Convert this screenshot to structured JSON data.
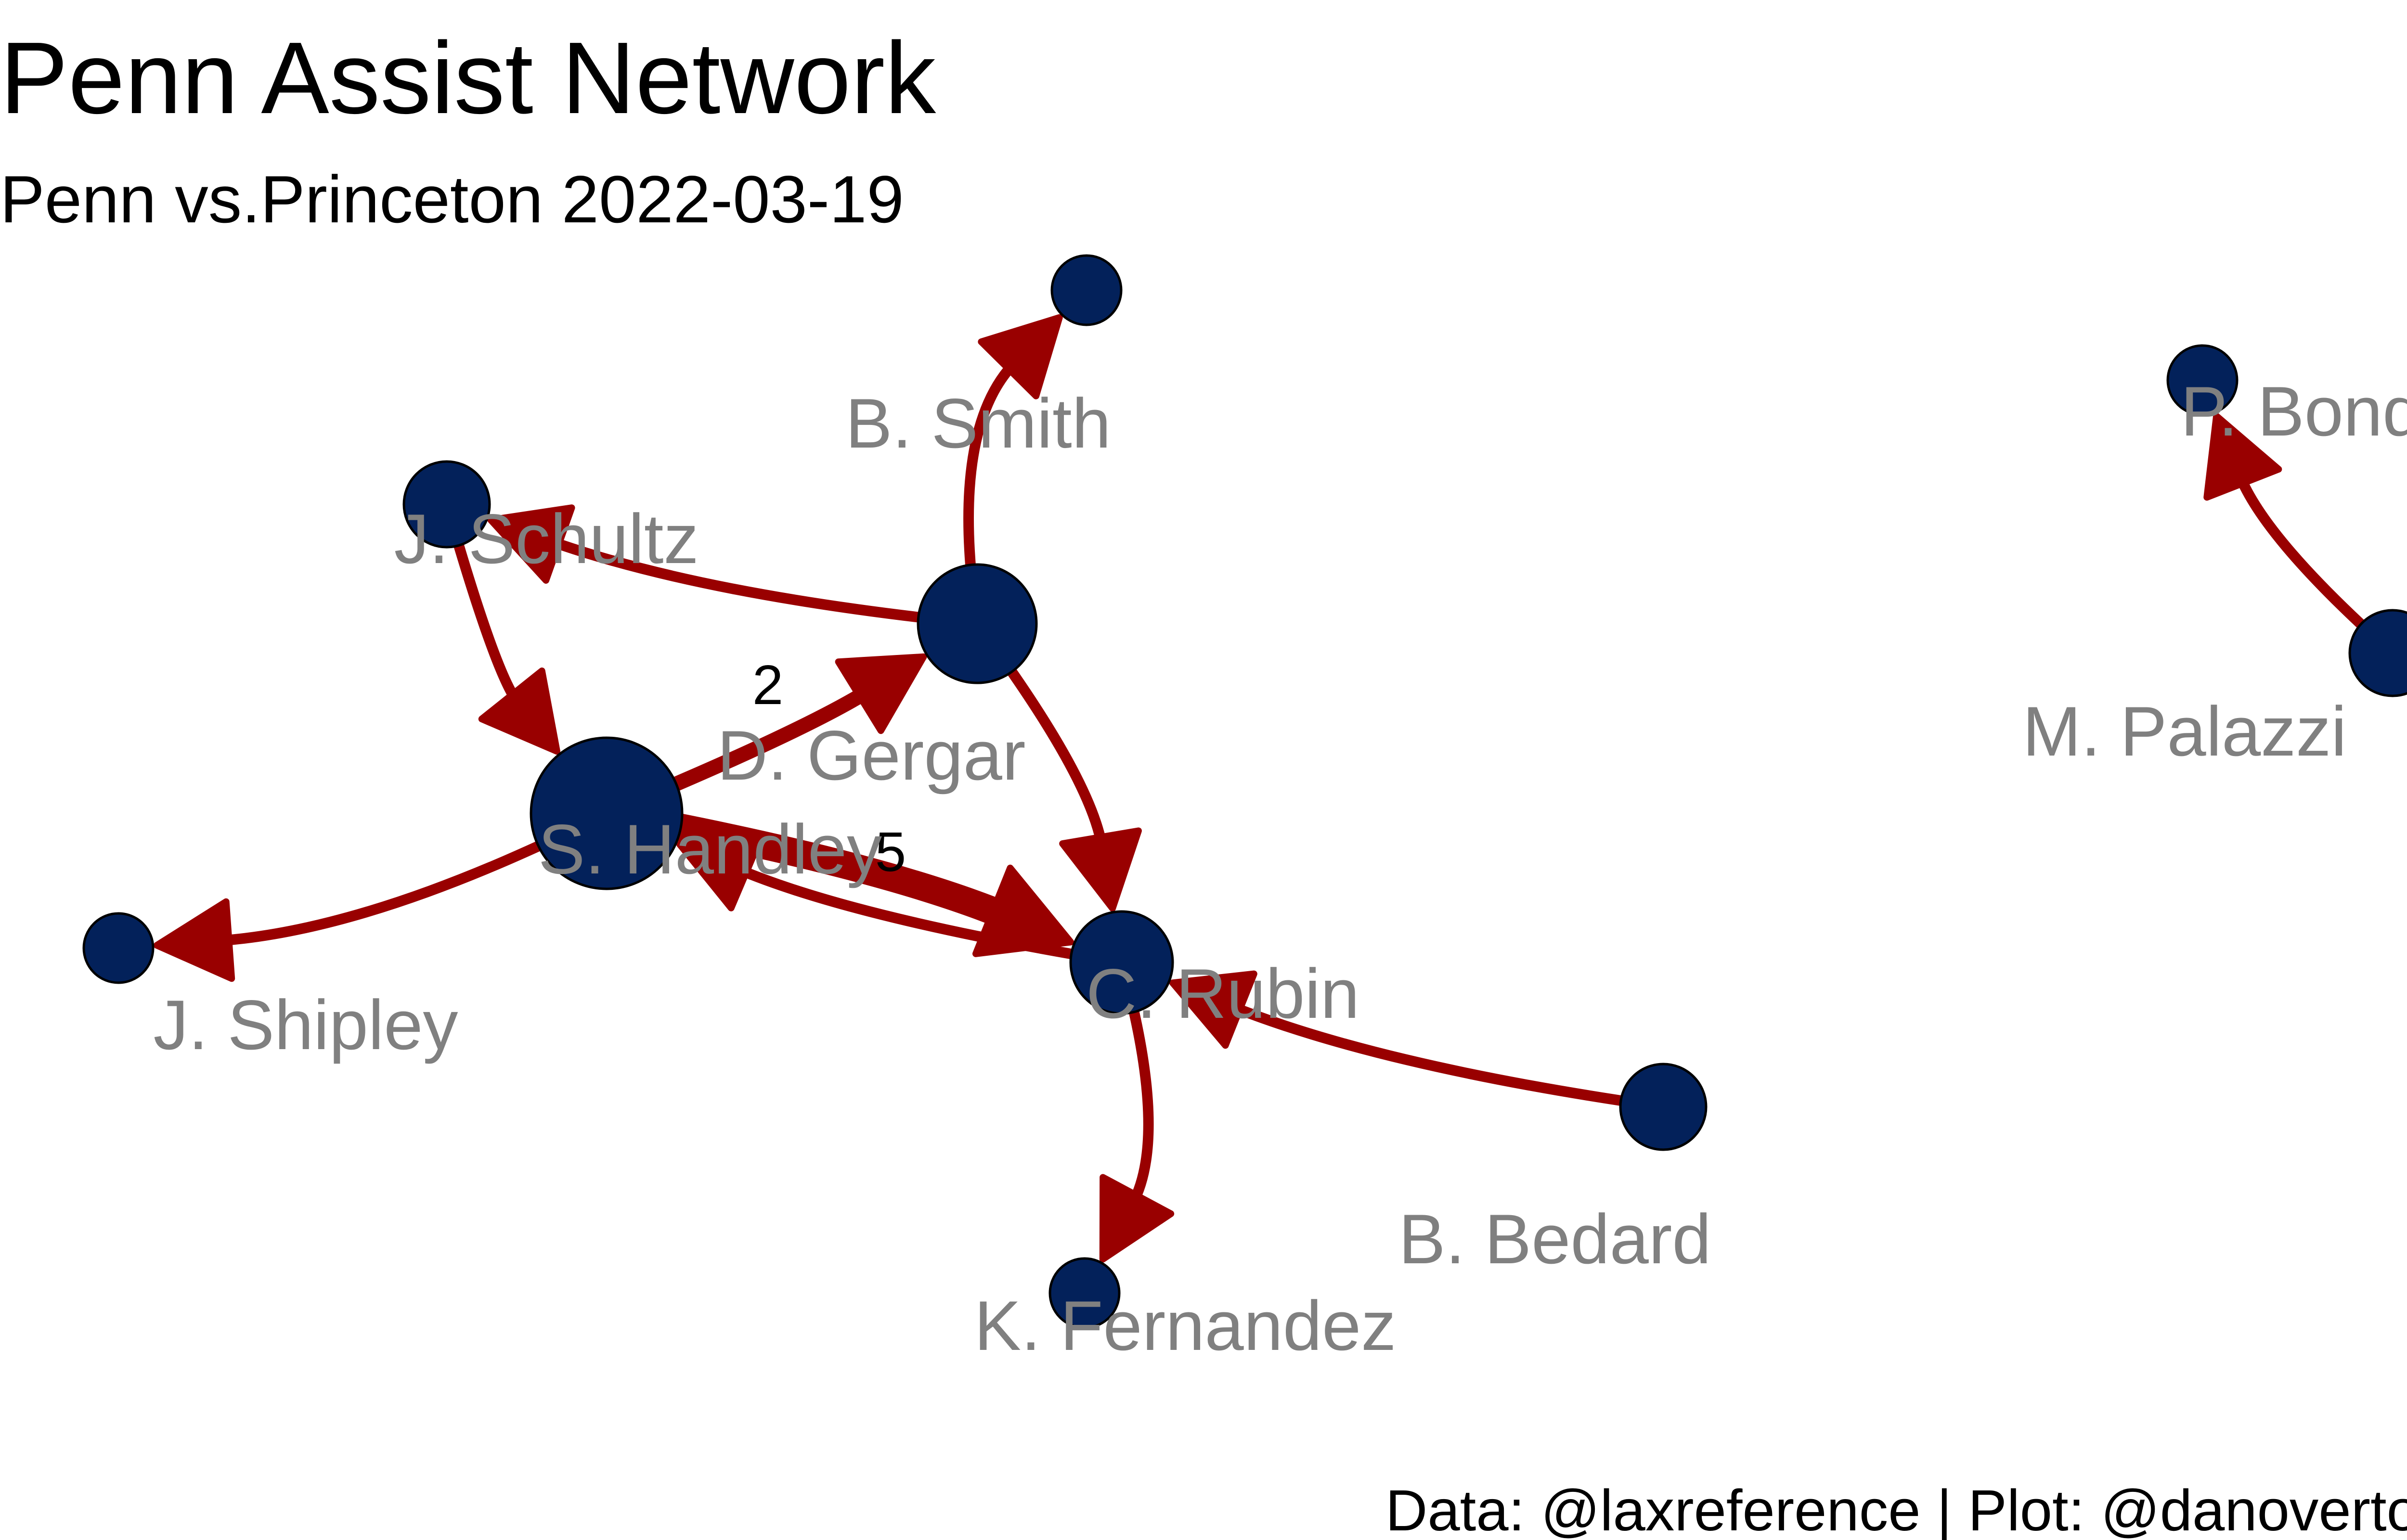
{
  "title": "Penn Assist Network",
  "subtitle": "Penn vs.Princeton 2022-03-19",
  "caption": "Data: @laxreference | Plot: @danovertoom",
  "colors": {
    "node_fill": "#03215a",
    "node_stroke": "#000000",
    "edge": "#990000",
    "label": "#808080"
  },
  "nodes": [
    {
      "id": "smith",
      "label": "B. Smith",
      "size": 1
    },
    {
      "id": "schultz",
      "label": "J. Schultz",
      "size": 2
    },
    {
      "id": "gergar",
      "label": "D. Gergar",
      "size": 4
    },
    {
      "id": "handley",
      "label": "S. Handley",
      "size": 6
    },
    {
      "id": "shipley",
      "label": "J. Shipley",
      "size": 1
    },
    {
      "id": "rubin",
      "label": "C. Rubin",
      "size": 3
    },
    {
      "id": "bedard",
      "label": "B. Bedard",
      "size": 2
    },
    {
      "id": "fernandez",
      "label": "K. Fernandez",
      "size": 1
    },
    {
      "id": "bond",
      "label": "P. Bond",
      "size": 1
    },
    {
      "id": "palazzi",
      "label": "M. Palazzi",
      "size": 2
    }
  ],
  "edges": [
    {
      "from": "gergar",
      "to": "smith",
      "weight": 1,
      "label": ""
    },
    {
      "from": "gergar",
      "to": "schultz",
      "weight": 1,
      "label": ""
    },
    {
      "from": "schultz",
      "to": "handley",
      "weight": 1,
      "label": ""
    },
    {
      "from": "handley",
      "to": "gergar",
      "weight": 2,
      "label": "2"
    },
    {
      "from": "handley",
      "to": "shipley",
      "weight": 1,
      "label": ""
    },
    {
      "from": "handley",
      "to": "rubin",
      "weight": 5,
      "label": "5"
    },
    {
      "from": "rubin",
      "to": "handley",
      "weight": 1,
      "label": ""
    },
    {
      "from": "gergar",
      "to": "rubin",
      "weight": 1,
      "label": ""
    },
    {
      "from": "bedard",
      "to": "rubin",
      "weight": 1,
      "label": ""
    },
    {
      "from": "rubin",
      "to": "fernandez",
      "weight": 1,
      "label": ""
    },
    {
      "from": "palazzi",
      "to": "bond",
      "weight": 1,
      "label": ""
    }
  ]
}
